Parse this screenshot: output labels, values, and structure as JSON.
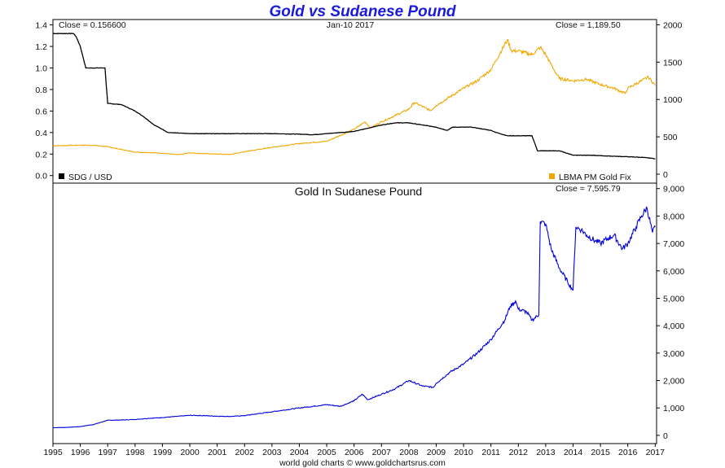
{
  "chart_data": {
    "title": "Gold vs Sudanese Pound",
    "title_color": "#1a1adc",
    "footer": "world gold charts © www.goldchartsrus.com",
    "x_ticks": [
      "1995",
      "1996",
      "1997",
      "1998",
      "1999",
      "2000",
      "2001",
      "2002",
      "2003",
      "2004",
      "2005",
      "2006",
      "2007",
      "2008",
      "2009",
      "2010",
      "2011",
      "2012",
      "2013",
      "2014",
      "2015",
      "2016",
      "2017"
    ],
    "x_range": [
      1995.0,
      2017.05
    ],
    "top_panel": {
      "type": "line",
      "date_label": "Jan-10  2017",
      "left_close": "Close = 0.156600",
      "right_close": "Close = 1,189.50",
      "left_axis": {
        "ylim": [
          -0.07,
          1.45
        ],
        "ticks": [
          "0.0",
          "0.2",
          "0.4",
          "0.6",
          "0.8",
          "1.0",
          "1.2",
          "1.4"
        ],
        "tick_values": [
          0,
          0.2,
          0.4,
          0.6,
          0.8,
          1.0,
          1.2,
          1.4
        ]
      },
      "right_axis": {
        "ylim": [
          -120,
          2070
        ],
        "ticks": [
          "0",
          "500",
          "1000",
          "1500",
          "2000"
        ],
        "tick_values": [
          0,
          500,
          1000,
          1500,
          2000
        ]
      },
      "series": [
        {
          "name": "SDG / USD",
          "color": "#000000",
          "axis": "left",
          "x": [
            1995.0,
            1995.75,
            1995.85,
            1996.0,
            1996.2,
            1996.9,
            1997.0,
            1997.5,
            1998.0,
            1998.3,
            1998.7,
            1999.0,
            1999.2,
            2000.0,
            2001.0,
            2002.0,
            2003.0,
            2004.0,
            2004.5,
            2005.0,
            2005.5,
            2006.0,
            2006.5,
            2007.0,
            2007.5,
            2008.0,
            2008.5,
            2009.0,
            2009.4,
            2009.6,
            2010.0,
            2010.3,
            2011.0,
            2011.2,
            2011.6,
            2012.0,
            2012.5,
            2012.7,
            2013.0,
            2013.5,
            2014.0,
            2014.5,
            2015.0,
            2015.5,
            2016.0,
            2016.5,
            2016.9,
            2017.0
          ],
          "y": [
            1.32,
            1.32,
            1.29,
            1.2,
            1.0,
            1.0,
            0.67,
            0.66,
            0.6,
            0.55,
            0.47,
            0.43,
            0.4,
            0.39,
            0.39,
            0.39,
            0.39,
            0.385,
            0.38,
            0.39,
            0.4,
            0.41,
            0.44,
            0.47,
            0.49,
            0.49,
            0.47,
            0.45,
            0.42,
            0.45,
            0.45,
            0.45,
            0.42,
            0.4,
            0.37,
            0.37,
            0.37,
            0.23,
            0.23,
            0.23,
            0.19,
            0.19,
            0.185,
            0.18,
            0.175,
            0.17,
            0.16,
            0.1566
          ]
        },
        {
          "name": "LBMA PM Gold Fix",
          "color": "#f0a800",
          "axis": "right",
          "x": [
            1995.0,
            1996.0,
            1996.5,
            1997.0,
            1997.5,
            1998.0,
            1998.5,
            1999.0,
            1999.6,
            2000.0,
            2000.5,
            2001.0,
            2001.5,
            2002.0,
            2003.0,
            2004.0,
            2005.0,
            2006.0,
            2006.4,
            2006.6,
            2007.0,
            2008.0,
            2008.2,
            2008.8,
            2009.0,
            2010.0,
            2010.5,
            2011.0,
            2011.6,
            2011.75,
            2012.0,
            2012.5,
            2012.8,
            2013.0,
            2013.3,
            2013.5,
            2014.0,
            2014.5,
            2015.0,
            2015.5,
            2015.9,
            2016.0,
            2016.5,
            2016.75,
            2017.0
          ],
          "y": [
            380,
            388,
            385,
            367,
            330,
            295,
            290,
            280,
            260,
            285,
            275,
            270,
            265,
            300,
            360,
            410,
            440,
            600,
            700,
            620,
            700,
            870,
            960,
            850,
            920,
            1150,
            1250,
            1400,
            1800,
            1650,
            1650,
            1600,
            1700,
            1600,
            1400,
            1280,
            1250,
            1270,
            1200,
            1150,
            1080,
            1150,
            1250,
            1300,
            1190
          ]
        }
      ],
      "legend": [
        {
          "label": "SDG / USD",
          "color": "#000000"
        },
        {
          "label": "LBMA PM Gold Fix",
          "color": "#f0a800"
        }
      ]
    },
    "bottom_panel": {
      "type": "line",
      "title": "Gold In Sudanese Pound",
      "right_close": "Close = 7,595.79",
      "right_axis": {
        "ylim": [
          -300,
          9200
        ],
        "ticks": [
          "0",
          "1,000",
          "2,000",
          "3,000",
          "4,000",
          "5,000",
          "6,000",
          "7,000",
          "8,000",
          "9,000"
        ],
        "tick_values": [
          0,
          1000,
          2000,
          3000,
          4000,
          5000,
          6000,
          7000,
          8000,
          9000
        ]
      },
      "series": [
        {
          "name": "Gold In Sudanese Pound",
          "color": "#0000dd",
          "x": [
            1995.0,
            1995.5,
            1996.0,
            1996.5,
            1997.0,
            1997.5,
            1998.0,
            1998.5,
            1999.0,
            1999.5,
            2000.0,
            2000.5,
            2001.0,
            2001.5,
            2002.0,
            2003.0,
            2004.0,
            2005.0,
            2005.5,
            2006.0,
            2006.3,
            2006.5,
            2007.0,
            2007.5,
            2008.0,
            2008.5,
            2008.9,
            2009.0,
            2009.5,
            2010.0,
            2010.5,
            2011.0,
            2011.5,
            2011.7,
            2011.9,
            2012.0,
            2012.3,
            2012.5,
            2012.75,
            2012.8,
            2013.0,
            2013.2,
            2013.5,
            2013.8,
            2014.0,
            2014.1,
            2014.3,
            2014.5,
            2014.8,
            2015.0,
            2015.3,
            2015.5,
            2015.8,
            2016.0,
            2016.3,
            2016.5,
            2016.7,
            2016.9,
            2017.0
          ],
          "y": [
            280,
            290,
            320,
            400,
            550,
            560,
            580,
            620,
            650,
            690,
            730,
            720,
            700,
            690,
            720,
            860,
            1000,
            1120,
            1060,
            1260,
            1500,
            1300,
            1500,
            1700,
            2000,
            1800,
            1750,
            1900,
            2300,
            2600,
            3000,
            3500,
            4200,
            4700,
            4900,
            4600,
            4500,
            4200,
            4400,
            7800,
            7700,
            6800,
            6100,
            5600,
            5300,
            7600,
            7500,
            7300,
            7100,
            7000,
            7200,
            7300,
            6800,
            7000,
            7600,
            8000,
            8300,
            7400,
            7596
          ]
        }
      ]
    }
  }
}
